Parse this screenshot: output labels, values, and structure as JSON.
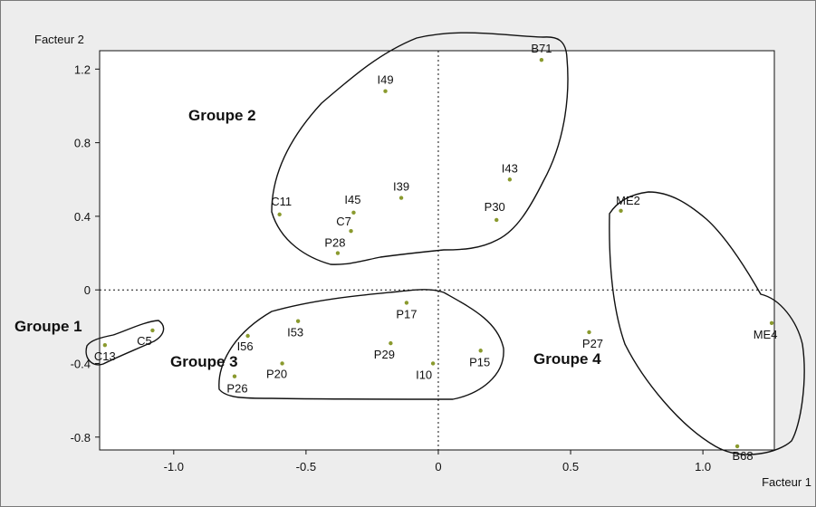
{
  "chart_data": {
    "type": "scatter",
    "title": "",
    "xlabel": "Facteur 1",
    "ylabel": "Facteur 2",
    "xlim": [
      -1.28,
      1.27
    ],
    "ylim": [
      -0.87,
      1.3
    ],
    "grid": false,
    "xticks": [
      -1.0,
      -0.5,
      0,
      0.5,
      1.0
    ],
    "xtick_labels": [
      "-1.0",
      "-0.5",
      "0",
      "0.5",
      "1.0"
    ],
    "yticks": [
      -0.8,
      -0.4,
      0,
      0.4,
      0.8,
      1.2
    ],
    "ytick_labels": [
      "-0.8",
      "-0.4",
      "0",
      "0.4",
      "0.8",
      "1.2"
    ],
    "reference_lines": {
      "x": 0,
      "y": 0,
      "style": "dotted"
    },
    "point_color": "#8a9a2e",
    "points": [
      {
        "label": "B71",
        "x": 0.39,
        "y": 1.25
      },
      {
        "label": "I49",
        "x": -0.2,
        "y": 1.08
      },
      {
        "label": "I43",
        "x": 0.27,
        "y": 0.6
      },
      {
        "label": "I39",
        "x": -0.14,
        "y": 0.5
      },
      {
        "label": "C11",
        "x": -0.6,
        "y": 0.41
      },
      {
        "label": "I45",
        "x": -0.32,
        "y": 0.42
      },
      {
        "label": "C7",
        "x": -0.33,
        "y": 0.32
      },
      {
        "label": "P28",
        "x": -0.38,
        "y": 0.2
      },
      {
        "label": "P30",
        "x": 0.22,
        "y": 0.38
      },
      {
        "label": "ME2",
        "x": 0.69,
        "y": 0.43
      },
      {
        "label": "P17",
        "x": -0.12,
        "y": -0.07
      },
      {
        "label": "I53",
        "x": -0.53,
        "y": -0.17
      },
      {
        "label": "I56",
        "x": -0.72,
        "y": -0.25
      },
      {
        "label": "P29",
        "x": -0.18,
        "y": -0.29
      },
      {
        "label": "P15",
        "x": 0.16,
        "y": -0.33
      },
      {
        "label": "I10",
        "x": -0.02,
        "y": -0.4
      },
      {
        "label": "P20",
        "x": -0.59,
        "y": -0.4
      },
      {
        "label": "P26",
        "x": -0.77,
        "y": -0.47
      },
      {
        "label": "C5",
        "x": -1.08,
        "y": -0.22
      },
      {
        "label": "C13",
        "x": -1.26,
        "y": -0.3
      },
      {
        "label": "P27",
        "x": 0.57,
        "y": -0.23
      },
      {
        "label": "ME4",
        "x": 1.26,
        "y": -0.18
      },
      {
        "label": "B68",
        "x": 1.13,
        "y": -0.85
      }
    ],
    "groups": [
      {
        "name": "Groupe 1"
      },
      {
        "name": "Groupe 2"
      },
      {
        "name": "Groupe 3"
      },
      {
        "name": "Groupe 4"
      }
    ]
  }
}
